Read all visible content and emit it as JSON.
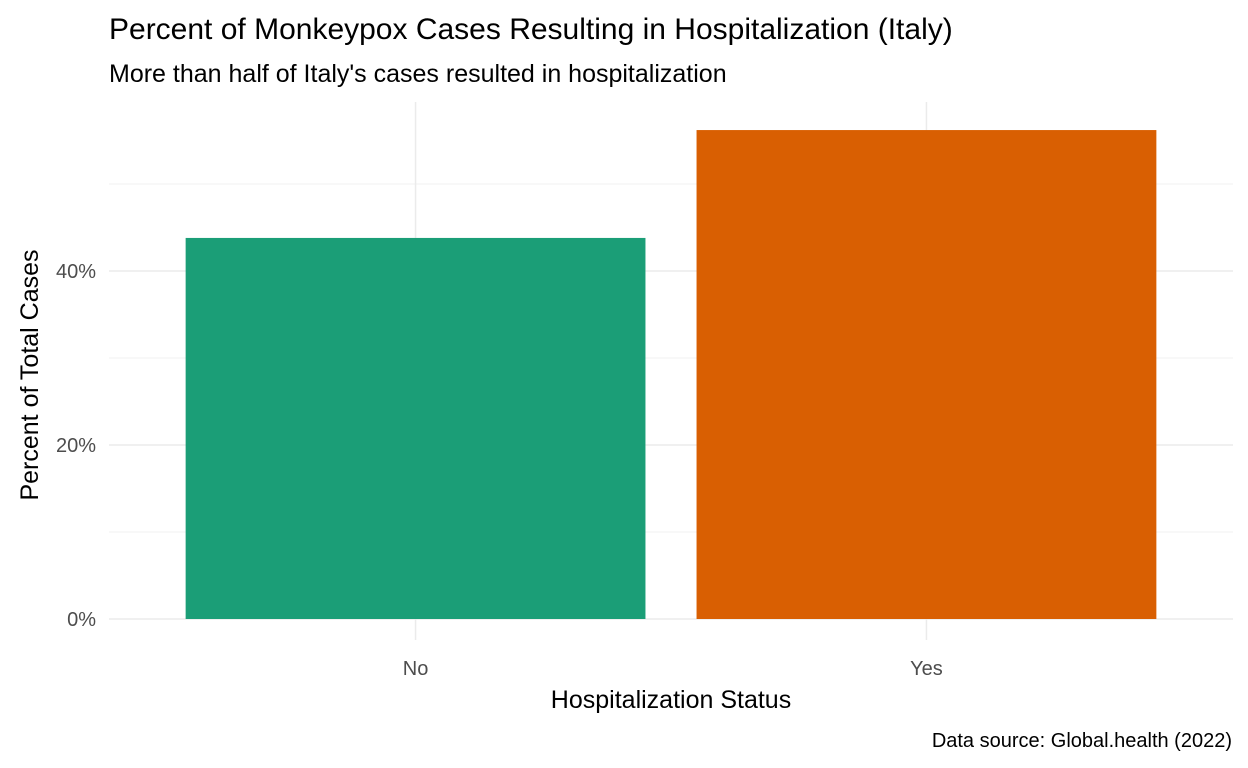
{
  "title": "Percent of Monkeypox Cases Resulting in Hospitalization (Italy)",
  "subtitle": "More than half of Italy's cases resulted in hospitalization",
  "caption": "Data source: Global.health (2022)",
  "colors": {
    "No": "#1b9e77",
    "Yes": "#d95f02",
    "grid": "#ebebeb",
    "tick_text": "#4d4d4d"
  },
  "chart_data": {
    "type": "bar",
    "title": "Percent of Monkeypox Cases Resulting in Hospitalization (Italy)",
    "subtitle": "More than half of Italy's cases resulted in hospitalization",
    "xlabel": "Hospitalization Status",
    "ylabel": "Percent of Total Cases",
    "categories": [
      "No",
      "Yes"
    ],
    "values": [
      43.8,
      56.2
    ],
    "unit": "%",
    "ylim": [
      0,
      59
    ],
    "yticks": [
      0,
      20,
      40
    ],
    "ytick_labels": [
      "0%",
      "20%",
      "40%"
    ],
    "grid": true,
    "legend": "none"
  }
}
